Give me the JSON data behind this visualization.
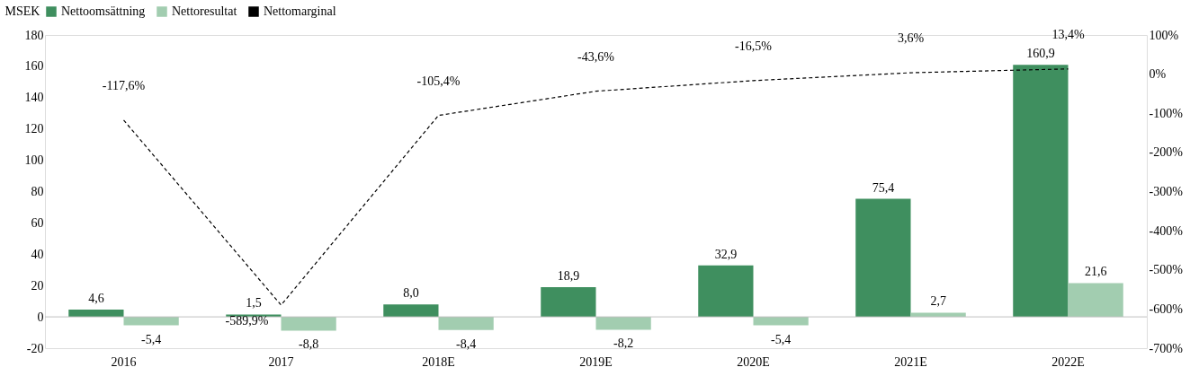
{
  "chart_data": {
    "type": "bar",
    "ylabel": "MSEK",
    "categories": [
      "2016",
      "2017",
      "2018E",
      "2019E",
      "2020E",
      "2021E",
      "2022E"
    ],
    "series": [
      {
        "name": "Nettoomsättning",
        "color": "#3f8f5f",
        "values": [
          4.6,
          1.5,
          8.0,
          18.9,
          32.9,
          75.4,
          160.9
        ],
        "value_labels": [
          "4,6",
          "1,5",
          "8,0",
          "18,9",
          "32,9",
          "75,4",
          "160,9"
        ]
      },
      {
        "name": "Nettoresultat",
        "color": "#a2cdb0",
        "values": [
          -5.4,
          -8.8,
          -8.4,
          -8.2,
          -5.4,
          2.7,
          21.6
        ],
        "value_labels": [
          "-5,4",
          "-8,8",
          "-8,4",
          "-8,2",
          "-5,4",
          "2,7",
          "21,6"
        ]
      },
      {
        "name": "Nettomarginal",
        "type": "line",
        "axis": "y2",
        "line_style": "dashed",
        "marker": "none",
        "color": "#000000",
        "values": [
          -117.6,
          -589.9,
          -105.4,
          -43.6,
          -16.5,
          3.6,
          13.4
        ],
        "value_labels": [
          "-117,6%",
          "-589,9%",
          "-105,4%",
          "-43,6%",
          "-16,5%",
          "3,6%",
          "13,4%"
        ]
      }
    ],
    "ylim": [
      -20,
      180
    ],
    "yticks": [
      -20,
      0,
      20,
      40,
      60,
      80,
      100,
      120,
      140,
      160,
      180
    ],
    "y2lim": [
      -700,
      100
    ],
    "y2ticks": [
      {
        "value": -700,
        "label": "-700%"
      },
      {
        "value": -600,
        "label": "-600%"
      },
      {
        "value": -500,
        "label": "-500%"
      },
      {
        "value": -400,
        "label": "-400%"
      },
      {
        "value": -300,
        "label": "-300%"
      },
      {
        "value": -200,
        "label": "-200%"
      },
      {
        "value": -100,
        "label": "-100%"
      },
      {
        "value": 0,
        "label": "0%"
      },
      {
        "value": 100,
        "label": "100%"
      }
    ],
    "ref_lines": [
      {
        "axis": "y",
        "value": 0,
        "color": "#bfbfbf"
      }
    ],
    "legend": "top",
    "grid": false
  }
}
